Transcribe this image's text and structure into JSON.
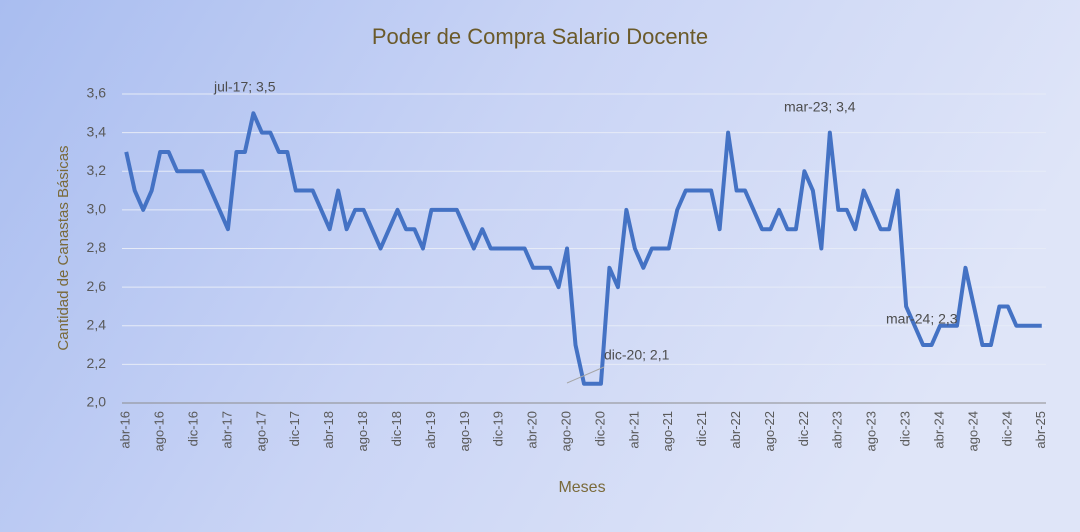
{
  "chart_data": {
    "type": "line",
    "title": "Poder de Compra Salario Docente",
    "x_label": "Meses",
    "y_label": "Cantidad de Canastas Básicas",
    "categories": [
      "abr-16",
      null,
      null,
      null,
      "ago-16",
      null,
      null,
      null,
      "dic-16",
      null,
      null,
      null,
      "abr-17",
      null,
      null,
      null,
      "ago-17",
      null,
      null,
      null,
      "dic-17",
      null,
      null,
      null,
      "abr-18",
      null,
      null,
      null,
      "ago-18",
      null,
      null,
      null,
      "dic-18",
      null,
      null,
      null,
      "abr-19",
      null,
      null,
      null,
      "ago-19",
      null,
      null,
      null,
      "dic-19",
      null,
      null,
      null,
      "abr-20",
      null,
      null,
      null,
      "ago-20",
      null,
      null,
      null,
      "dic-20",
      null,
      null,
      null,
      "abr-21",
      null,
      null,
      null,
      "ago-21",
      null,
      null,
      null,
      "dic-21",
      null,
      null,
      null,
      "abr-22",
      null,
      null,
      null,
      "ago-22",
      null,
      null,
      null,
      "dic-22",
      null,
      null,
      null,
      "abr-23",
      null,
      null,
      null,
      "ago-23",
      null,
      null,
      null,
      "dic-23",
      null,
      null,
      null,
      "abr-24",
      null,
      null,
      null,
      "ago-24",
      null,
      null,
      null,
      "dic-24",
      null,
      null,
      null,
      "abr-25"
    ],
    "values": [
      3.3,
      3.1,
      3.0,
      3.1,
      3.3,
      3.3,
      3.2,
      3.2,
      3.2,
      3.2,
      3.1,
      3.0,
      2.9,
      3.3,
      3.3,
      3.5,
      3.4,
      3.4,
      3.3,
      3.3,
      3.1,
      3.1,
      3.1,
      3.0,
      2.9,
      3.1,
      2.9,
      3.0,
      3.0,
      2.9,
      2.8,
      2.9,
      3.0,
      2.9,
      2.9,
      2.8,
      3.0,
      3.0,
      3.0,
      3.0,
      2.9,
      2.8,
      2.9,
      2.8,
      2.8,
      2.8,
      2.8,
      2.8,
      2.7,
      2.7,
      2.7,
      2.6,
      2.8,
      2.3,
      2.1,
      2.1,
      2.1,
      2.7,
      2.6,
      3.0,
      2.8,
      2.7,
      2.8,
      2.8,
      2.8,
      3.0,
      3.1,
      3.1,
      3.1,
      3.1,
      2.9,
      3.4,
      3.1,
      3.1,
      3.0,
      2.9,
      2.9,
      3.0,
      2.9,
      2.9,
      3.2,
      3.1,
      2.8,
      3.4,
      3.0,
      3.0,
      2.9,
      3.1,
      3.0,
      2.9,
      2.9,
      3.1,
      2.5,
      2.4,
      2.3,
      2.3,
      2.4,
      2.4,
      2.4,
      2.7,
      2.5,
      2.3,
      2.3,
      2.5,
      2.5,
      2.4,
      2.4,
      2.4,
      2.4
    ],
    "color": "#4472c4",
    "ylim": [
      2.0,
      3.6
    ],
    "yticks": [
      {
        "value": 2.0,
        "label": "2,0"
      },
      {
        "value": 2.2,
        "label": "2,2"
      },
      {
        "value": 2.4,
        "label": "2,4"
      },
      {
        "value": 2.6,
        "label": "2,6"
      },
      {
        "value": 2.8,
        "label": "2,8"
      },
      {
        "value": 3.0,
        "label": "3,0"
      },
      {
        "value": 3.2,
        "label": "3,2"
      },
      {
        "value": 3.4,
        "label": "3,4"
      },
      {
        "value": 3.6,
        "label": "3,6"
      }
    ],
    "grid": true,
    "annotations": [
      "jul-17; 3,5",
      "dic-20; 2,1",
      "mar-23; 3,4",
      "mar-24; 2,3"
    ]
  }
}
